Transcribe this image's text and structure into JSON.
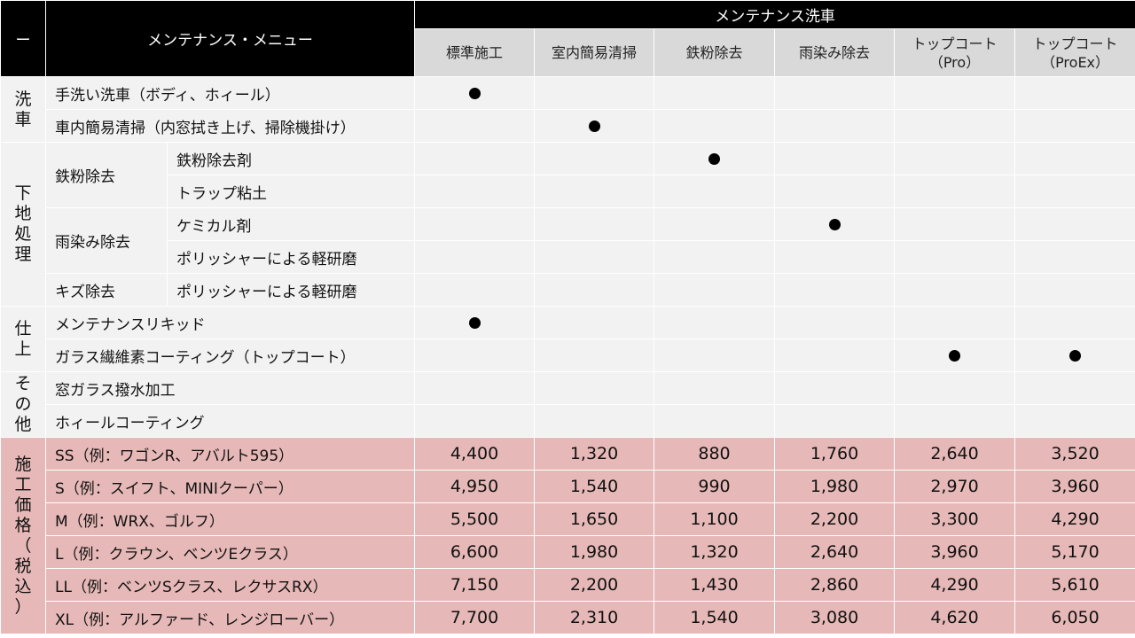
{
  "header": {
    "dash": "ー",
    "menu_title": "メンテナンス・メニュー",
    "group_title": "メンテナンス洗車",
    "columns": [
      {
        "line1": "標準施工",
        "line2": ""
      },
      {
        "line1": "室内簡易清掃",
        "line2": ""
      },
      {
        "line1": "鉄粉除去",
        "line2": ""
      },
      {
        "line1": "雨染み除去",
        "line2": ""
      },
      {
        "line1": "トップコート",
        "line2": "（Pro）"
      },
      {
        "line1": "トップコート",
        "line2": "（ProEx）"
      }
    ]
  },
  "categories": {
    "wash": [
      "洗",
      "車"
    ],
    "prep": [
      "下",
      "地",
      "処",
      "理"
    ],
    "finish": [
      "仕",
      "上"
    ],
    "other": [
      "そ",
      "の",
      "他"
    ],
    "price": [
      "施",
      "工",
      "価",
      "格",
      "（",
      "税",
      "込",
      "）"
    ]
  },
  "rows": {
    "hand_wash": {
      "label": "手洗い洗車（ボディ、ホィール）",
      "marks": [
        true,
        false,
        false,
        false,
        false,
        false
      ]
    },
    "interior": {
      "label": "車内簡易清掃（内窓拭き上げ、掃除機掛け）",
      "marks": [
        false,
        true,
        false,
        false,
        false,
        false
      ]
    },
    "iron_group": "鉄粉除去",
    "iron_agent": {
      "label": "鉄粉除去剤",
      "marks": [
        false,
        false,
        true,
        false,
        false,
        false
      ]
    },
    "trap_clay": {
      "label": "トラップ粘土",
      "marks": [
        false,
        false,
        false,
        false,
        false,
        false
      ]
    },
    "rain_group": "雨染み除去",
    "chemical": {
      "label": "ケミカル剤",
      "marks": [
        false,
        false,
        false,
        true,
        false,
        false
      ]
    },
    "polish1": {
      "label": "ポリッシャーによる軽研磨",
      "marks": [
        false,
        false,
        false,
        false,
        false,
        false
      ]
    },
    "scratch_group": "キズ除去",
    "polish2": {
      "label": "ポリッシャーによる軽研磨",
      "marks": [
        false,
        false,
        false,
        false,
        false,
        false
      ]
    },
    "liquid": {
      "label": "メンテナンスリキッド",
      "marks": [
        true,
        false,
        false,
        false,
        false,
        false
      ]
    },
    "glass_coat": {
      "label": "ガラス繊維素コーティング（トップコート）",
      "marks": [
        false,
        false,
        false,
        false,
        true,
        true
      ]
    },
    "window": {
      "label": "窓ガラス撥水加工",
      "marks": [
        false,
        false,
        false,
        false,
        false,
        false
      ]
    },
    "wheel": {
      "label": "ホィールコーティング",
      "marks": [
        false,
        false,
        false,
        false,
        false,
        false
      ]
    }
  },
  "prices": [
    {
      "label": "SS（例：ワゴンR、アバルト595）",
      "values": [
        "4,400",
        "1,320",
        "880",
        "1,760",
        "2,640",
        "3,520"
      ]
    },
    {
      "label": "S（例：スイフト、MINIクーパー）",
      "values": [
        "4,950",
        "1,540",
        "990",
        "1,980",
        "2,970",
        "3,960"
      ]
    },
    {
      "label": "M（例：WRX、ゴルフ）",
      "values": [
        "5,500",
        "1,650",
        "1,100",
        "2,200",
        "3,300",
        "4,290"
      ]
    },
    {
      "label": "L（例：クラウン、ベンツEクラス）",
      "values": [
        "6,600",
        "1,980",
        "1,320",
        "2,640",
        "3,960",
        "5,170"
      ]
    },
    {
      "label": "LL（例：ベンツSクラス、レクサスRX）",
      "values": [
        "7,150",
        "2,200",
        "1,430",
        "2,860",
        "4,290",
        "5,610"
      ]
    },
    {
      "label": "XL（例：アルファード、レンジローバー）",
      "values": [
        "7,700",
        "2,310",
        "1,540",
        "3,080",
        "4,620",
        "6,050"
      ]
    }
  ],
  "colors": {
    "header_bg": "#000000",
    "subheader_bg": "#d9d9d9",
    "body_bg": "#f2f2f2",
    "price_bg": "#e6b9b8",
    "mark": "#000000"
  },
  "icons": {
    "mark": "filled-circle"
  }
}
